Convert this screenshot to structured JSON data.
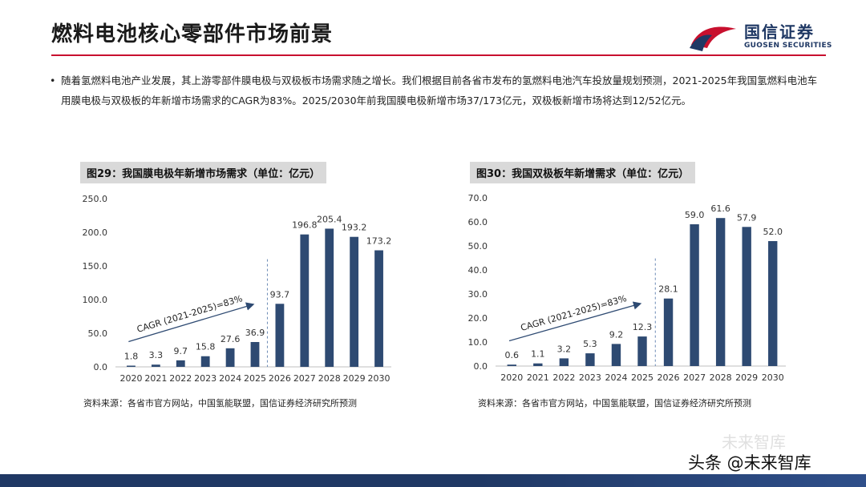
{
  "header": {
    "title": "燃料电池核心零部件市场前景",
    "logo_cn": "国信证券",
    "logo_en": "GUOSEN SECURITIES"
  },
  "intro": {
    "bullet": "•",
    "text": "随着氢燃料电池产业发展，其上游零部件膜电极与双极板市场需求随之增长。我们根据目前各省市发布的氢燃料电池汽车投放量规划预测，2021-2025年我国氢燃料电池车用膜电极与双极板的年新增市场需求的CAGR为83%。2025/2030年前我国膜电极新增市场37/173亿元，双极板新增市场将达到12/52亿元。"
  },
  "colors": {
    "bar": "#2e4a72",
    "arrow": "#2e4a72",
    "axis_text": "#333333",
    "accent_rule": "#c8102e",
    "brand": "#1f3864"
  },
  "chart_data": [
    {
      "type": "bar",
      "title": "图29：我国膜电极年新增市场需求（单位：亿元）",
      "categories": [
        "2020",
        "2021",
        "2022",
        "2023",
        "2024",
        "2025",
        "2026",
        "2027",
        "2028",
        "2029",
        "2030"
      ],
      "values": [
        1.8,
        3.3,
        9.7,
        15.8,
        27.6,
        36.9,
        93.7,
        196.8,
        205.4,
        193.2,
        173.2
      ],
      "value_labels": [
        "1.8",
        "3.3",
        "9.7",
        "15.8",
        "27.6",
        "36.9",
        "93.7",
        "196.8",
        "205.4",
        "193.2",
        "173.2"
      ],
      "yticks": [
        "0.0",
        "50.0",
        "100.0",
        "150.0",
        "200.0",
        "250.0"
      ],
      "ylim": [
        0,
        250
      ],
      "annotation": "CAGR (2021-2025)=83%",
      "divider_after": "2025",
      "source": "资料来源：各省市官方网站，中国氢能联盟，国信证券经济研究所预测"
    },
    {
      "type": "bar",
      "title": "图30：我国双极板年新增需求（单位：亿元）",
      "categories": [
        "2020",
        "2021",
        "2022",
        "2023",
        "2024",
        "2025",
        "2026",
        "2027",
        "2028",
        "2029",
        "2030"
      ],
      "values": [
        0.6,
        1.1,
        3.2,
        5.3,
        9.2,
        12.3,
        28.1,
        59.0,
        61.6,
        57.9,
        52.0
      ],
      "value_labels": [
        "0.6",
        "1.1",
        "3.2",
        "5.3",
        "9.2",
        "12.3",
        "28.1",
        "59.0",
        "61.6",
        "57.9",
        "52.0"
      ],
      "yticks": [
        "0.0",
        "10.0",
        "20.0",
        "30.0",
        "40.0",
        "50.0",
        "60.0",
        "70.0"
      ],
      "ylim": [
        0,
        70
      ],
      "annotation": "CAGR (2021-2025)=83%",
      "divider_after": "2025",
      "source": "资料来源：各省市官方网站，中国氢能联盟，国信证券经济研究所预测"
    }
  ],
  "watermark": {
    "text": "头条 @未来智库",
    "faint": "未来智库"
  }
}
